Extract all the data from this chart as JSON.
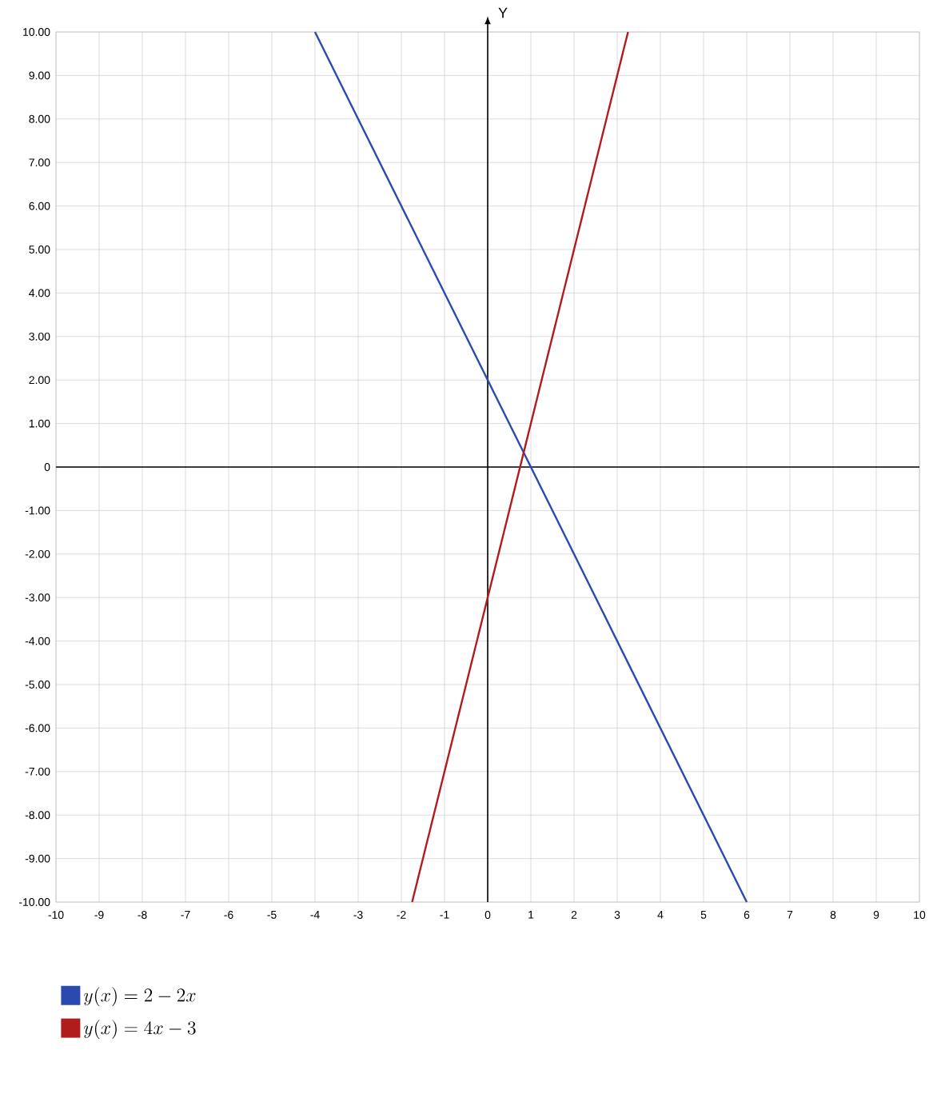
{
  "chart_data": {
    "type": "line",
    "ylabel": "Y",
    "series": [
      {
        "name": "y(x) = 2 - 2x",
        "color": "#2b4ab0",
        "x": [
          -4,
          6
        ],
        "values": [
          10,
          -10
        ]
      },
      {
        "name": "y(x) = 4x - 3",
        "color": "#b01c1c",
        "x": [
          -1.75,
          3.25
        ],
        "values": [
          -10,
          10
        ]
      }
    ],
    "xlim": [
      -10,
      10
    ],
    "ylim": [
      -10,
      10
    ],
    "xticks": [
      -10,
      -9,
      -8,
      -7,
      -6,
      -5,
      -4,
      -3,
      -2,
      -1,
      0,
      1,
      2,
      3,
      4,
      5,
      6,
      7,
      8,
      9,
      10
    ],
    "yticks": [
      {
        "value": -10,
        "label": "-10.00"
      },
      {
        "value": -9,
        "label": "-9.00"
      },
      {
        "value": -8,
        "label": "-8.00"
      },
      {
        "value": -7,
        "label": "-7.00"
      },
      {
        "value": -6,
        "label": "-6.00"
      },
      {
        "value": -5,
        "label": "-5.00"
      },
      {
        "value": -4,
        "label": "-4.00"
      },
      {
        "value": -3,
        "label": "-3.00"
      },
      {
        "value": -2,
        "label": "-2.00"
      },
      {
        "value": -1,
        "label": "-1.00"
      },
      0,
      {
        "value": 1,
        "label": "1.00"
      },
      {
        "value": 2,
        "label": "2.00"
      },
      {
        "value": 3,
        "label": "3.00"
      },
      {
        "value": 4,
        "label": "4.00"
      },
      {
        "value": 5,
        "label": "5.00"
      },
      {
        "value": 6,
        "label": "6.00"
      },
      {
        "value": 7,
        "label": "7.00"
      },
      {
        "value": 8,
        "label": "8.00"
      },
      {
        "value": 9,
        "label": "9.00"
      },
      {
        "value": 10,
        "label": "10.00"
      }
    ],
    "grid": true,
    "legend": "bottom left",
    "marker": "none",
    "line_style": "solid"
  }
}
